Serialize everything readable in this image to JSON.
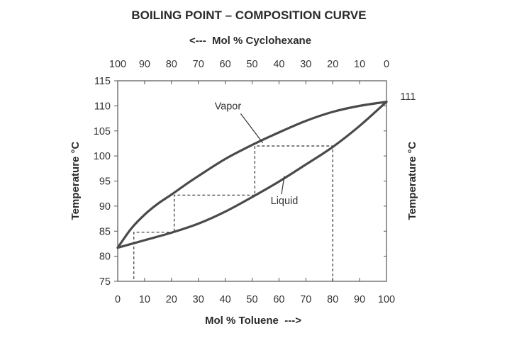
{
  "chart_data": {
    "type": "line",
    "title": "BOILING POINT – COMPOSITION CURVE",
    "xlabel": "Mol % Toluene  --->",
    "x2label": "<---  Mol % Cyclohexane",
    "ylabel": "Temperature °C",
    "y2label": "Temperature °C",
    "xlim": [
      0,
      100
    ],
    "ylim": [
      75,
      115
    ],
    "x_ticks": [
      0,
      10,
      20,
      30,
      40,
      50,
      60,
      70,
      80,
      90,
      100
    ],
    "x2_ticks": [
      100,
      90,
      80,
      70,
      60,
      50,
      40,
      30,
      20,
      10,
      0
    ],
    "y_ticks": [
      75,
      80,
      85,
      90,
      95,
      100,
      105,
      110,
      115
    ],
    "grid": false,
    "series": [
      {
        "name": "Vapor",
        "x": [
          0,
          5,
          10,
          15,
          20,
          25,
          30,
          40,
          50,
          60,
          70,
          80,
          90,
          100
        ],
        "y": [
          81.7,
          85.5,
          88.3,
          90.5,
          92.3,
          94.2,
          96.0,
          99.4,
          102.2,
          104.7,
          107.0,
          108.8,
          110.0,
          110.8
        ]
      },
      {
        "name": "Liquid",
        "x": [
          0,
          10,
          20,
          30,
          40,
          50,
          60,
          70,
          80,
          90,
          100
        ],
        "y": [
          81.7,
          83.2,
          84.7,
          86.5,
          88.9,
          91.8,
          94.9,
          98.3,
          101.8,
          106.0,
          110.8
        ]
      }
    ],
    "steps": [
      {
        "x": [
          80,
          80,
          51,
          51
        ],
        "y": [
          75,
          102,
          102,
          92.2
        ]
      },
      {
        "x": [
          51,
          21,
          21
        ],
        "y": [
          92.2,
          92.2,
          84.8
        ]
      },
      {
        "x": [
          21,
          6,
          6
        ],
        "y": [
          84.8,
          84.8,
          75
        ]
      }
    ],
    "annotations": [
      {
        "text": "Vapor",
        "x": 41,
        "y": 109.3,
        "arrow_to": [
          54,
          102.6
        ]
      },
      {
        "text": "Liquid",
        "x": 62,
        "y": 90.4,
        "arrow_to": [
          62,
          96
        ]
      },
      {
        "text": "111",
        "x": 108,
        "y": 111.2
      }
    ]
  }
}
